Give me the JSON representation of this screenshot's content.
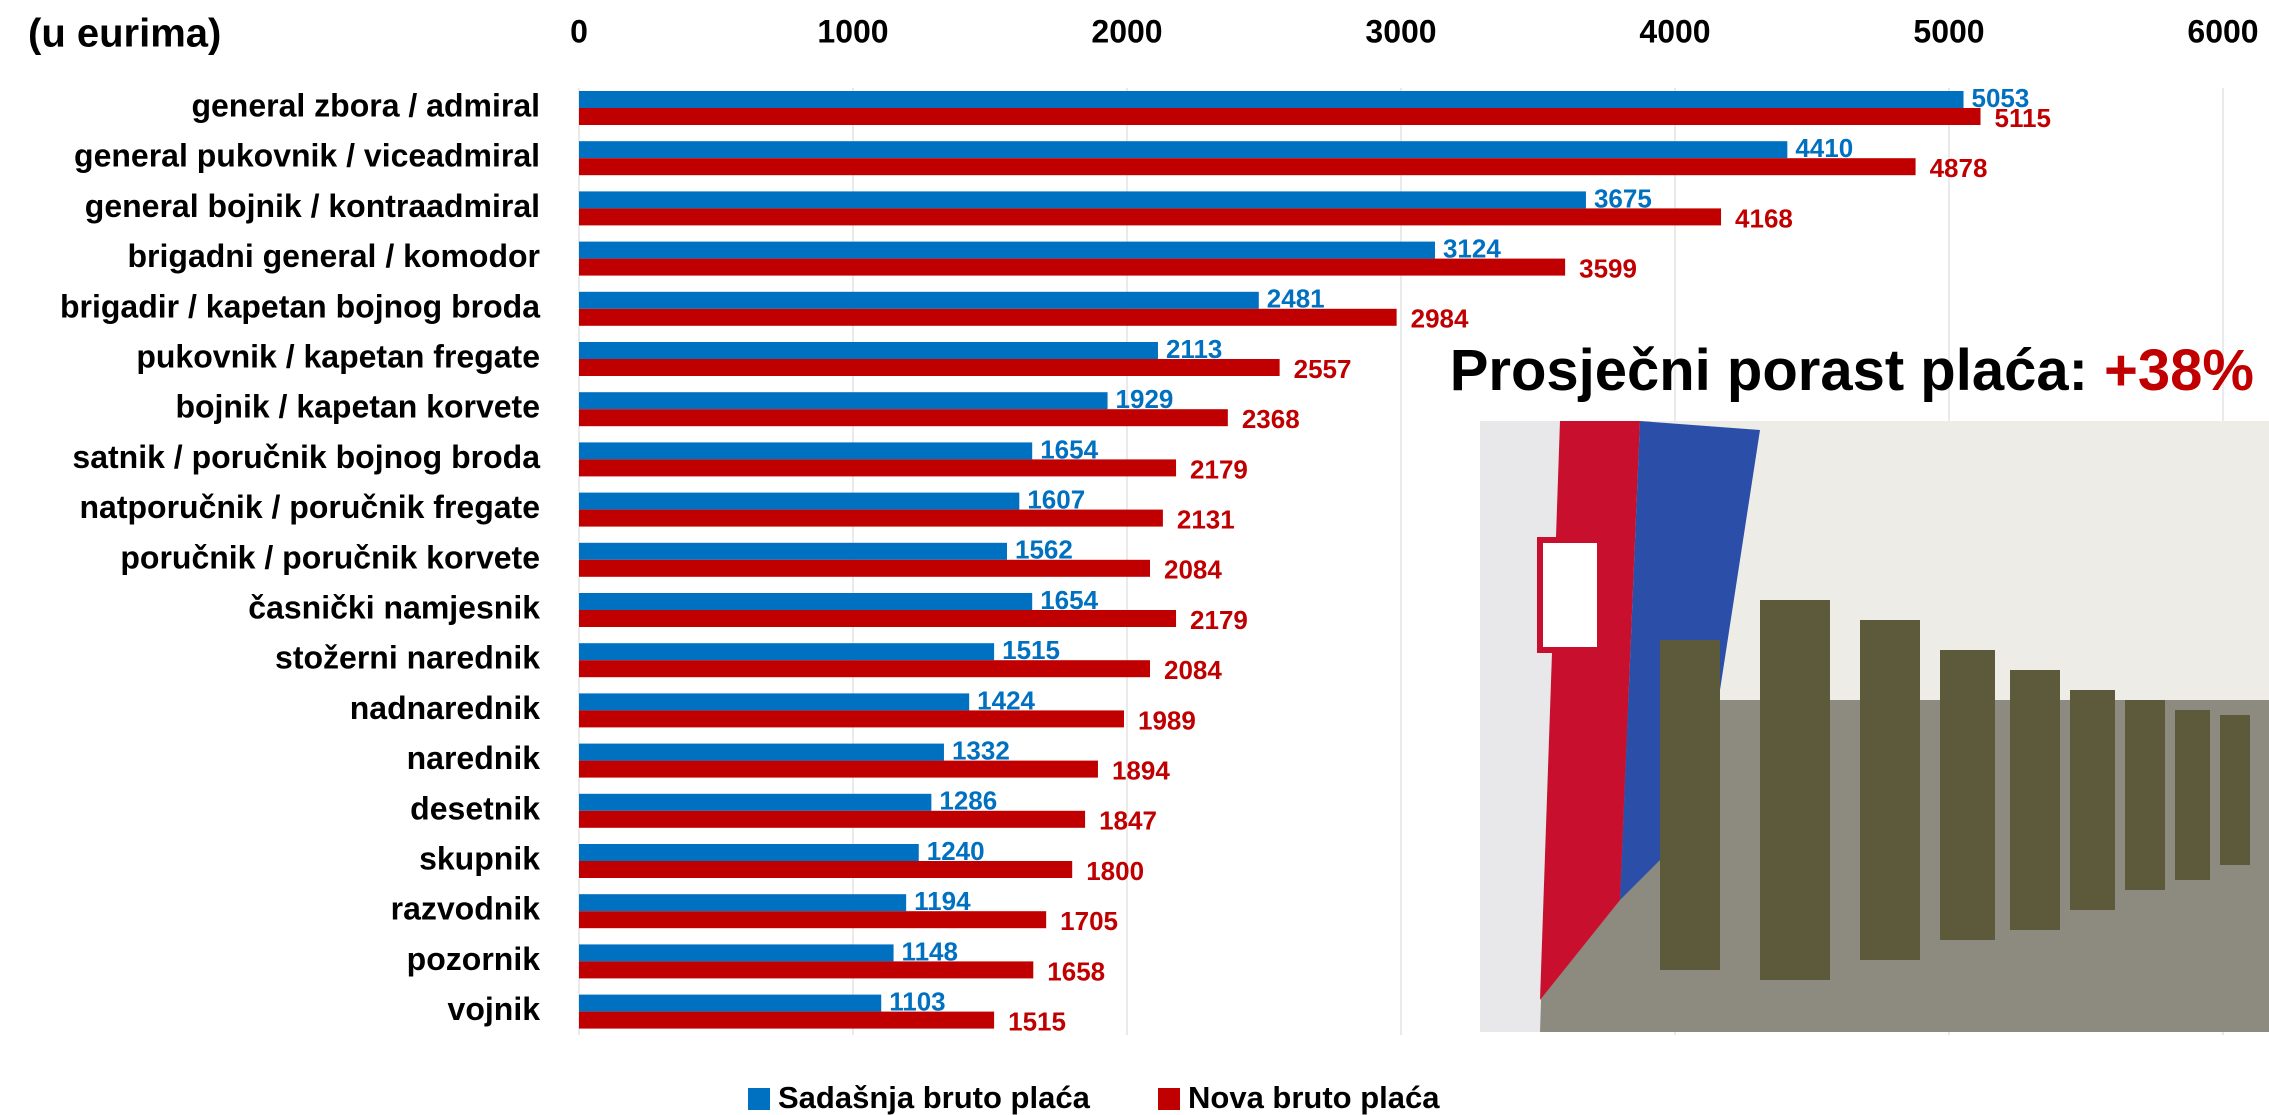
{
  "chart_data": {
    "type": "bar",
    "orientation": "horizontal",
    "unit_label": "(u eurima)",
    "annotation": {
      "text": "Prosječni porast plaća: ",
      "highlight": "+38%",
      "highlight_color": "#c00000"
    },
    "categories": [
      "general zbora / admiral",
      "general pukovnik / viceadmiral",
      "general bojnik / kontraadmiral",
      "brigadni general / komodor",
      "brigadir / kapetan bojnog broda",
      "pukovnik / kapetan fregate",
      "bojnik / kapetan korvete",
      "satnik / poručnik bojnog broda",
      "natporučnik / poručnik fregate",
      "poručnik / poručnik korvete",
      "časnički namjesnik",
      "stožerni narednik",
      "nadnarednik",
      "narednik",
      "desetnik",
      "skupnik",
      "razvodnik",
      "pozornik",
      "vojnik"
    ],
    "series": [
      {
        "name": "Sadašnja bruto plaća",
        "color": "#0070c0",
        "values": [
          5053,
          4410,
          3675,
          3124,
          2481,
          2113,
          1929,
          1654,
          1607,
          1562,
          1654,
          1515,
          1424,
          1332,
          1286,
          1240,
          1194,
          1148,
          1103
        ]
      },
      {
        "name": "Nova bruto plaća",
        "color": "#c00000",
        "values": [
          5115,
          4878,
          4168,
          3599,
          2984,
          2557,
          2368,
          2179,
          2131,
          2084,
          2179,
          2084,
          1989,
          1894,
          1847,
          1800,
          1705,
          1658,
          1515
        ]
      }
    ],
    "xlim": [
      0,
      6000
    ],
    "xticks": [
      0,
      1000,
      2000,
      3000,
      4000,
      5000,
      6000
    ],
    "grid": true
  }
}
